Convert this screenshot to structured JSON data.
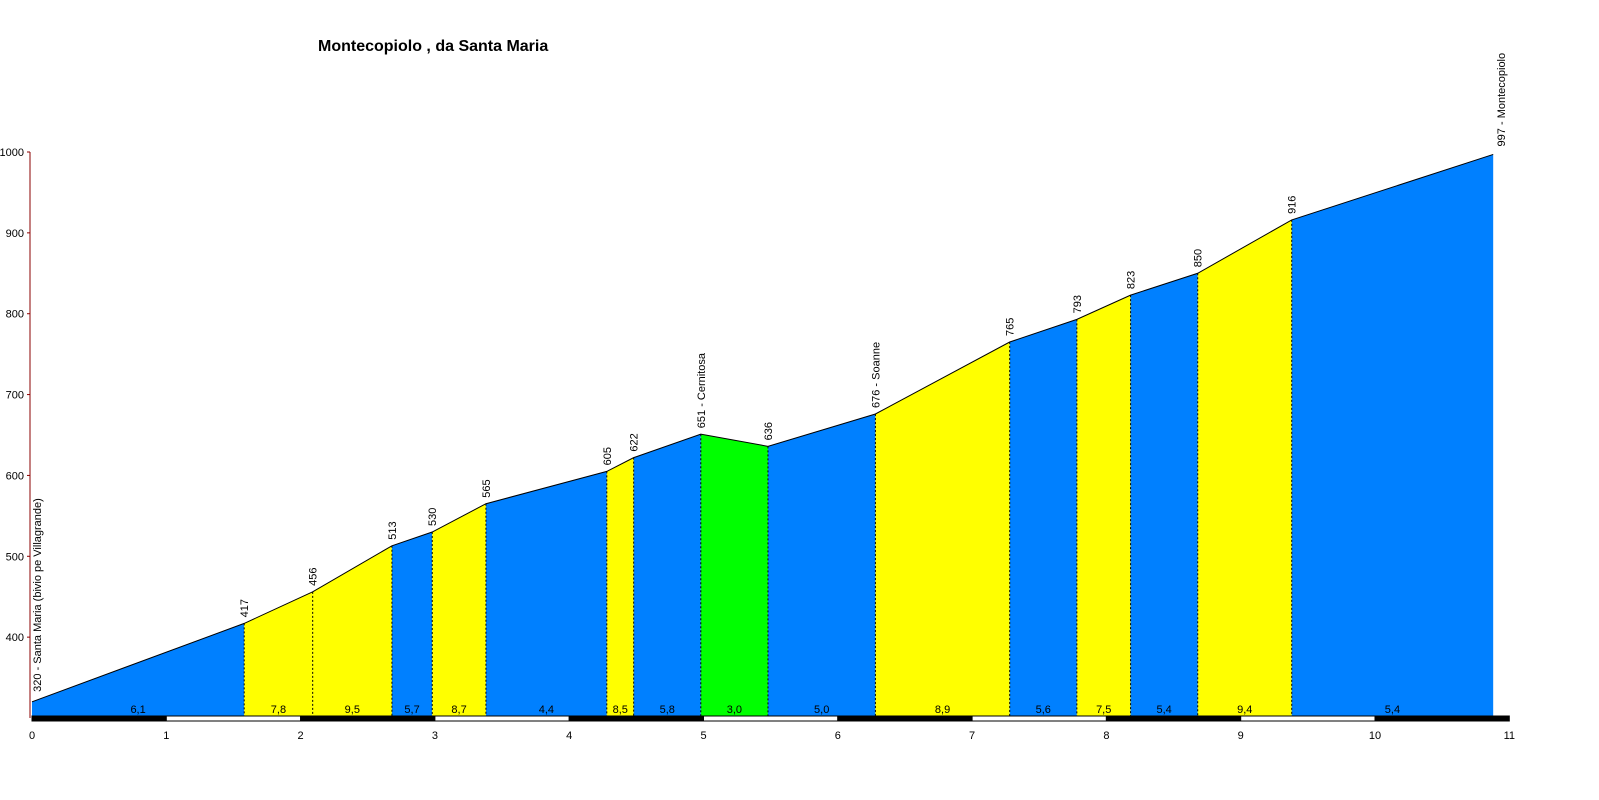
{
  "colors": {
    "blue": "#0080ff",
    "yellow": "#ffff00",
    "green": "#00ff00",
    "axis": "#8b0000",
    "text": "#000000"
  },
  "chart_data": {
    "type": "area",
    "title": "Montecopiolo , da Santa Maria",
    "xlabel": "",
    "ylabel": "",
    "xlim": [
      0,
      11
    ],
    "ylim": [
      300,
      1000
    ],
    "x_ticks": [
      0,
      1,
      2,
      3,
      4,
      5,
      6,
      7,
      8,
      9,
      10,
      11
    ],
    "y_ticks": [
      400,
      500,
      600,
      700,
      800,
      900,
      1000
    ],
    "grid": false,
    "points": [
      {
        "x": 0,
        "y": 320,
        "label": "320 - Santa Maria (bivio pe Villagrande)"
      },
      {
        "x": 1.58,
        "y": 417,
        "label": "417"
      },
      {
        "x": 2.09,
        "y": 456,
        "label": "456"
      },
      {
        "x": 2.68,
        "y": 513,
        "label": "513"
      },
      {
        "x": 2.98,
        "y": 530,
        "label": "530"
      },
      {
        "x": 3.38,
        "y": 565,
        "label": "565"
      },
      {
        "x": 4.28,
        "y": 605,
        "label": "605"
      },
      {
        "x": 4.48,
        "y": 622,
        "label": "622"
      },
      {
        "x": 4.98,
        "y": 651,
        "label": "651 - Cernitosa"
      },
      {
        "x": 5.48,
        "y": 636,
        "label": "636"
      },
      {
        "x": 6.28,
        "y": 676,
        "label": "676 - Soanne"
      },
      {
        "x": 7.28,
        "y": 765,
        "label": "765"
      },
      {
        "x": 7.78,
        "y": 793,
        "label": "793"
      },
      {
        "x": 8.18,
        "y": 823,
        "label": "823"
      },
      {
        "x": 8.68,
        "y": 850,
        "label": "850"
      },
      {
        "x": 9.38,
        "y": 916,
        "label": "916"
      },
      {
        "x": 10.88,
        "y": 997,
        "label": "997 - Montecopiolo"
      }
    ],
    "segments": [
      {
        "gradient": "6,1",
        "color": "blue"
      },
      {
        "gradient": "7,8",
        "color": "yellow"
      },
      {
        "gradient": "9,5",
        "color": "yellow"
      },
      {
        "gradient": "5,7",
        "color": "blue"
      },
      {
        "gradient": "8,7",
        "color": "yellow"
      },
      {
        "gradient": "4,4",
        "color": "blue"
      },
      {
        "gradient": "8,5",
        "color": "yellow"
      },
      {
        "gradient": "5,8",
        "color": "blue"
      },
      {
        "gradient": "3,0",
        "color": "green"
      },
      {
        "gradient": "5,0",
        "color": "blue"
      },
      {
        "gradient": "8,9",
        "color": "yellow"
      },
      {
        "gradient": "5,6",
        "color": "blue"
      },
      {
        "gradient": "7,5",
        "color": "yellow"
      },
      {
        "gradient": "5,4",
        "color": "blue"
      },
      {
        "gradient": "9,4",
        "color": "yellow"
      },
      {
        "gradient": "5,4",
        "color": "blue"
      }
    ]
  }
}
